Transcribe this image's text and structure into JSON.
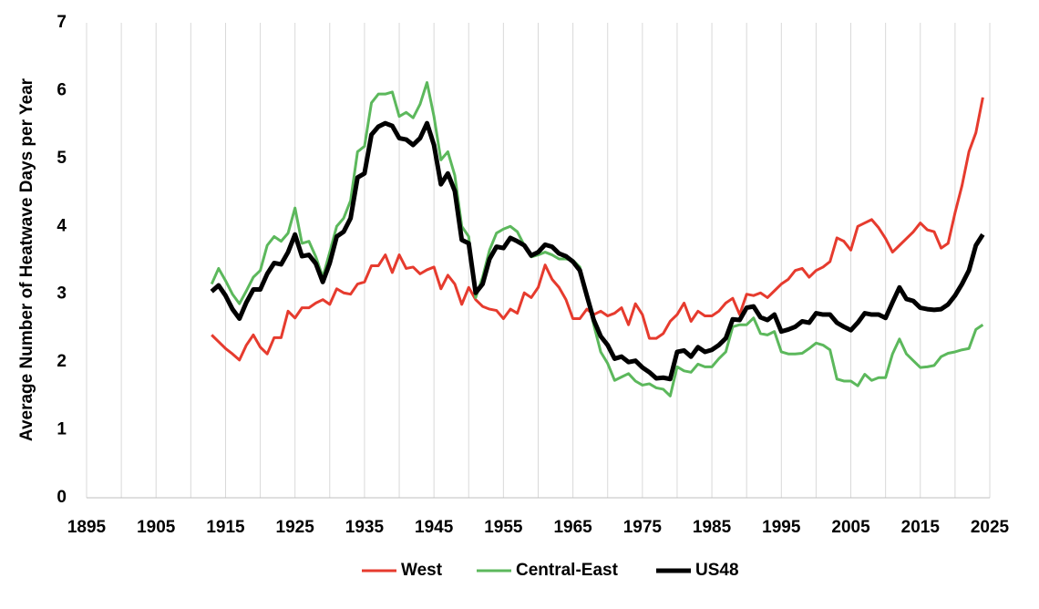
{
  "chart_data": {
    "type": "line",
    "ylabel": "Average Number of Heatwave Days per Year",
    "x": [
      1913,
      1914,
      1915,
      1916,
      1917,
      1918,
      1919,
      1920,
      1921,
      1922,
      1923,
      1924,
      1925,
      1926,
      1927,
      1928,
      1929,
      1930,
      1931,
      1932,
      1933,
      1934,
      1935,
      1936,
      1937,
      1938,
      1939,
      1940,
      1941,
      1942,
      1943,
      1944,
      1945,
      1946,
      1947,
      1948,
      1949,
      1950,
      1951,
      1952,
      1953,
      1954,
      1955,
      1956,
      1957,
      1958,
      1959,
      1960,
      1961,
      1962,
      1963,
      1964,
      1965,
      1966,
      1967,
      1968,
      1969,
      1970,
      1971,
      1972,
      1973,
      1974,
      1975,
      1976,
      1977,
      1978,
      1979,
      1980,
      1981,
      1982,
      1983,
      1984,
      1985,
      1986,
      1987,
      1988,
      1989,
      1990,
      1991,
      1992,
      1993,
      1994,
      1995,
      1996,
      1997,
      1998,
      1999,
      2000,
      2001,
      2002,
      2003,
      2004,
      2005,
      2006,
      2007,
      2008,
      2009,
      2010,
      2011,
      2012,
      2013,
      2014,
      2015,
      2016,
      2017,
      2018,
      2019,
      2020,
      2021,
      2022,
      2023,
      2024
    ],
    "series": [
      {
        "name": "West",
        "color": "#e63b2e",
        "width": 3,
        "values": [
          2.4,
          2.3,
          2.2,
          2.12,
          2.03,
          2.25,
          2.4,
          2.22,
          2.12,
          2.36,
          2.36,
          2.75,
          2.65,
          2.8,
          2.8,
          2.87,
          2.92,
          2.85,
          3.08,
          3.02,
          3.0,
          3.15,
          3.18,
          3.42,
          3.42,
          3.58,
          3.32,
          3.58,
          3.38,
          3.4,
          3.3,
          3.36,
          3.4,
          3.08,
          3.28,
          3.15,
          2.85,
          3.1,
          2.92,
          2.82,
          2.78,
          2.76,
          2.64,
          2.78,
          2.72,
          3.02,
          2.95,
          3.1,
          3.43,
          3.22,
          3.1,
          2.92,
          2.64,
          2.64,
          2.78,
          2.7,
          2.75,
          2.68,
          2.72,
          2.8,
          2.55,
          2.86,
          2.7,
          2.35,
          2.35,
          2.42,
          2.6,
          2.7,
          2.87,
          2.6,
          2.75,
          2.68,
          2.68,
          2.75,
          2.87,
          2.94,
          2.7,
          3.0,
          2.98,
          3.02,
          2.95,
          3.05,
          3.15,
          3.22,
          3.35,
          3.38,
          3.25,
          3.35,
          3.4,
          3.48,
          3.83,
          3.78,
          3.65,
          4.0,
          4.05,
          4.1,
          3.98,
          3.82,
          3.62,
          3.72,
          3.82,
          3.92,
          4.05,
          3.95,
          3.92,
          3.68,
          3.75,
          4.2,
          4.6,
          5.1,
          5.38,
          5.9
        ]
      },
      {
        "name": "Central-East",
        "color": "#5cb85c",
        "width": 3,
        "values": [
          3.15,
          3.38,
          3.2,
          3.0,
          2.86,
          3.05,
          3.25,
          3.35,
          3.72,
          3.85,
          3.78,
          3.9,
          4.27,
          3.75,
          3.78,
          3.55,
          3.25,
          3.62,
          4.0,
          4.12,
          4.38,
          5.1,
          5.18,
          5.82,
          5.95,
          5.95,
          5.98,
          5.62,
          5.68,
          5.6,
          5.8,
          6.12,
          5.62,
          4.98,
          5.1,
          4.75,
          4.0,
          3.85,
          2.95,
          3.25,
          3.65,
          3.9,
          3.96,
          4.0,
          3.92,
          3.72,
          3.55,
          3.58,
          3.62,
          3.58,
          3.52,
          3.52,
          3.5,
          3.4,
          3.0,
          2.55,
          2.15,
          1.98,
          1.73,
          1.78,
          1.83,
          1.72,
          1.66,
          1.68,
          1.62,
          1.6,
          1.5,
          1.93,
          1.87,
          1.85,
          1.97,
          1.93,
          1.93,
          2.05,
          2.15,
          2.52,
          2.55,
          2.55,
          2.65,
          2.42,
          2.4,
          2.45,
          2.15,
          2.12,
          2.12,
          2.13,
          2.2,
          2.28,
          2.25,
          2.18,
          1.75,
          1.72,
          1.72,
          1.65,
          1.82,
          1.73,
          1.77,
          1.77,
          2.12,
          2.34,
          2.12,
          2.02,
          1.92,
          1.93,
          1.95,
          2.08,
          2.13,
          2.15,
          2.18,
          2.2,
          2.48,
          2.55
        ]
      },
      {
        "name": "US48",
        "color": "#000000",
        "width": 5,
        "values": [
          3.04,
          3.13,
          2.98,
          2.78,
          2.64,
          2.88,
          3.07,
          3.07,
          3.3,
          3.46,
          3.44,
          3.62,
          3.88,
          3.56,
          3.58,
          3.45,
          3.18,
          3.46,
          3.85,
          3.92,
          4.12,
          4.72,
          4.78,
          5.35,
          5.47,
          5.52,
          5.48,
          5.3,
          5.28,
          5.2,
          5.3,
          5.52,
          5.2,
          4.62,
          4.78,
          4.52,
          3.8,
          3.75,
          3.02,
          3.15,
          3.52,
          3.7,
          3.68,
          3.83,
          3.78,
          3.72,
          3.57,
          3.62,
          3.73,
          3.7,
          3.6,
          3.56,
          3.48,
          3.35,
          2.98,
          2.62,
          2.38,
          2.25,
          2.05,
          2.08,
          2.0,
          2.02,
          1.92,
          1.85,
          1.76,
          1.77,
          1.75,
          2.15,
          2.17,
          2.08,
          2.22,
          2.15,
          2.18,
          2.25,
          2.35,
          2.63,
          2.62,
          2.8,
          2.82,
          2.66,
          2.62,
          2.7,
          2.45,
          2.48,
          2.52,
          2.6,
          2.58,
          2.72,
          2.7,
          2.7,
          2.58,
          2.52,
          2.47,
          2.58,
          2.72,
          2.7,
          2.7,
          2.65,
          2.88,
          3.1,
          2.93,
          2.9,
          2.8,
          2.78,
          2.77,
          2.78,
          2.85,
          2.98,
          3.15,
          3.35,
          3.72,
          3.88
        ]
      }
    ],
    "xlim": [
      1895,
      2025
    ],
    "ylim": [
      0,
      7
    ],
    "xticks": [
      1895,
      1905,
      1915,
      1925,
      1935,
      1945,
      1955,
      1965,
      1975,
      1985,
      1995,
      2005,
      2015,
      2025
    ],
    "x_minor_grid": [
      1900,
      1910,
      1920,
      1930,
      1940,
      1950,
      1960,
      1970,
      1980,
      1990,
      2000,
      2010,
      2020
    ],
    "yticks": [
      0,
      1,
      2,
      3,
      4,
      5,
      6,
      7
    ],
    "grid": "x",
    "legend": "bottom"
  }
}
